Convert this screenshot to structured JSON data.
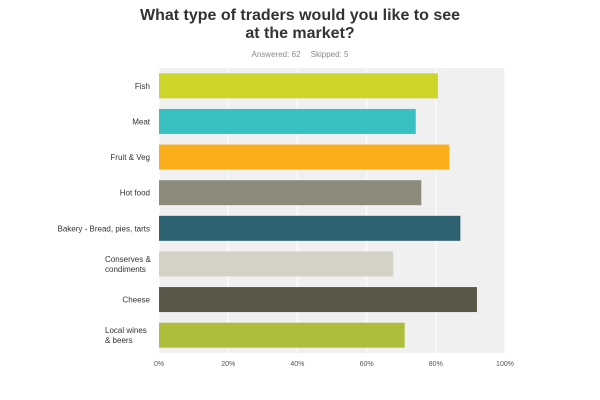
{
  "header": {
    "title_line1": "What type of traders would you like to see",
    "title_line2": "at the market?",
    "answered": "Answered: 62",
    "skipped": "Skipped: 5"
  },
  "chart_data": {
    "type": "bar",
    "orientation": "horizontal",
    "title": "What type of traders would you like to see at the market?",
    "categories": [
      [
        "Fish"
      ],
      [
        "Meat"
      ],
      [
        "Fruit & Veg"
      ],
      [
        "Hot food"
      ],
      [
        "Bakery - Bread, pies, tarts"
      ],
      [
        "Conserves &",
        "condiments"
      ],
      [
        "Cheese"
      ],
      [
        "Local wines",
        "& beers"
      ]
    ],
    "values": [
      80.6,
      74.2,
      83.9,
      75.8,
      87.1,
      67.7,
      91.9,
      71.0
    ],
    "colors": [
      "#cdd42a",
      "#38c0c2",
      "#f9ae1a",
      "#8c8b7a",
      "#2e6272",
      "#d3d2c5",
      "#5b5847",
      "#aebd3b"
    ],
    "xlim": [
      0,
      100
    ],
    "xticks": [
      "0%",
      "20%",
      "40%",
      "60%",
      "80%",
      "100%"
    ],
    "xticks_values": [
      0,
      20,
      40,
      60,
      80,
      100
    ],
    "grid": true,
    "background": "#f0f0f0"
  }
}
